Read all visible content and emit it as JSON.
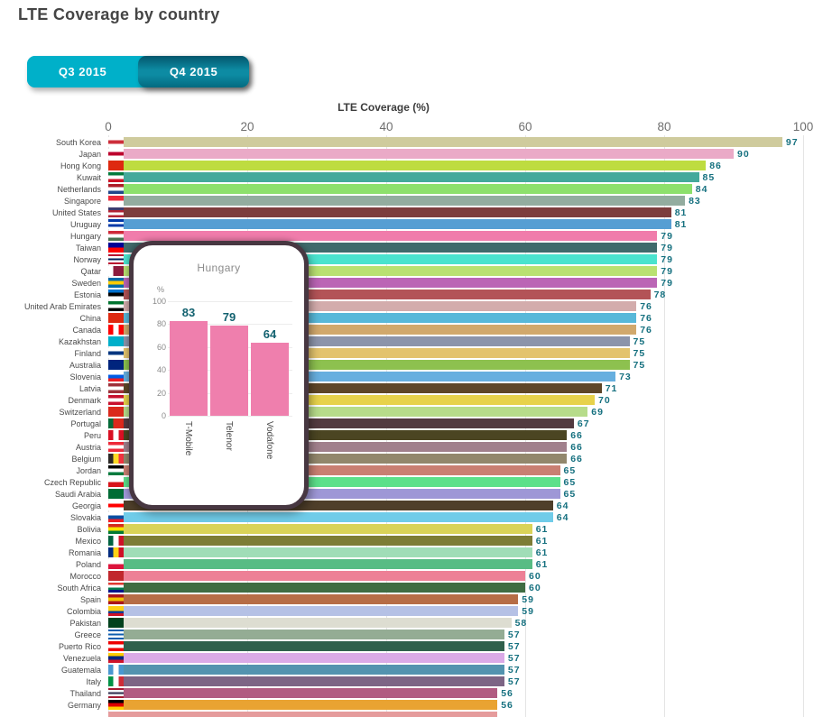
{
  "page_title": "LTE Coverage by country",
  "tabs": {
    "q3": {
      "label": "Q3 2015",
      "selected": false
    },
    "q4": {
      "label": "Q4 2015",
      "selected": true
    }
  },
  "colors": {
    "tab_inactive": "#00b0c9",
    "tab_active": "#0d8ba3",
    "value_label": "#15707f",
    "country_label": "#4a4a4a",
    "axis_tick": "#6f6f6f",
    "gridline": "#e4e4e4",
    "tooltip_border": "#473741",
    "tooltip_title_text": "#8b8b8b",
    "tooltip_bar": "#ef7fad",
    "partial_bottom_bar": "#e59b9c"
  },
  "chart_data": [
    {
      "type": "bar",
      "orientation": "horizontal",
      "title": "LTE Coverage by country",
      "xlabel": "LTE Coverage (%)",
      "xlim": [
        0,
        100
      ],
      "x_ticks": [
        0,
        20,
        40,
        60,
        80,
        100
      ],
      "grid": true,
      "categories": [
        "South Korea",
        "Japan",
        "Hong Kong",
        "Kuwait",
        "Netherlands",
        "Singapore",
        "United States",
        "Uruguay",
        "Hungary",
        "Taiwan",
        "Norway",
        "Qatar",
        "Sweden",
        "Estonia",
        "United Arab Emirates",
        "China",
        "Canada",
        "Kazakhstan",
        "Finland",
        "Australia",
        "Slovenia",
        "Latvia",
        "Denmark",
        "Switzerland",
        "Portugal",
        "Peru",
        "Austria",
        "Belgium",
        "Jordan",
        "Czech Republic",
        "Saudi Arabia",
        "Georgia",
        "Slovakia",
        "Bolivia",
        "Mexico",
        "Romania",
        "Poland",
        "Morocco",
        "South Africa",
        "Spain",
        "Colombia",
        "Pakistan",
        "Greece",
        "Puerto Rico",
        "Venezuela",
        "Guatemala",
        "Italy",
        "Thailand",
        "Germany"
      ],
      "values": [
        97,
        90,
        86,
        85,
        84,
        83,
        81,
        81,
        79,
        79,
        79,
        79,
        79,
        78,
        76,
        76,
        76,
        75,
        75,
        75,
        73,
        71,
        70,
        69,
        67,
        66,
        66,
        66,
        65,
        65,
        65,
        64,
        64,
        61,
        61,
        61,
        61,
        60,
        60,
        59,
        59,
        58,
        57,
        57,
        57,
        57,
        57,
        56,
        56
      ],
      "bar_colors": [
        "#cfcb9d",
        "#eaaac7",
        "#bedc40",
        "#43a99b",
        "#8de06c",
        "#93ac9f",
        "#7d3d3d",
        "#569ed3",
        "#f07cab",
        "#406a6b",
        "#4ae3ce",
        "#b9e171",
        "#bb65b5",
        "#b35357",
        "#d3acac",
        "#58b8d9",
        "#d1a86c",
        "#8c94aa",
        "#e3c36d",
        "#8dc14f",
        "#67afdf",
        "#5e4628",
        "#e7d24b",
        "#b7dc8a",
        "#533a40",
        "#4b4522",
        "#a1808c",
        "#92876c",
        "#c97f72",
        "#5ce08a",
        "#9e97d6",
        "#4f3f2a",
        "#70cce9",
        "#d9d358",
        "#7d7d36",
        "#a0ddb7",
        "#58bc84",
        "#ed8096",
        "#3f6c42",
        "#b66d46",
        "#b5c1e5",
        "#ddddd1",
        "#94ac94",
        "#2f604c",
        "#daaae7",
        "#5393af",
        "#7d6585",
        "#b15b81",
        "#e9a332"
      ],
      "flag_stripes": [
        [
          "#ffffff",
          "#cd2e3a",
          "#ffffff"
        ],
        [
          "#ffffff",
          "#bc002d",
          "#ffffff"
        ],
        [
          "#de2910"
        ],
        [
          "#007a3d",
          "#ffffff",
          "#ce1126"
        ],
        [
          "#ae1c28",
          "#ffffff",
          "#21468b"
        ],
        [
          "#ed2939",
          "#ffffff"
        ],
        [
          "#3c3b6e",
          "#b22234",
          "#ffffff",
          "#b22234"
        ],
        [
          "#0038a8",
          "#ffffff",
          "#0038a8",
          "#ffffff"
        ],
        [
          "#ce2939",
          "#ffffff",
          "#477050"
        ],
        [
          "#000095",
          "#fe0000"
        ],
        [
          "#ba0c2f",
          "#ffffff",
          "#00205b",
          "#ffffff",
          "#ba0c2f"
        ],
        [
          "v",
          "#ffffff",
          "#8d1b3d",
          "#8d1b3d"
        ],
        [
          "#006aa7",
          "#fecc02",
          "#006aa7"
        ],
        [
          "#0072ce",
          "#000000",
          "#ffffff"
        ],
        [
          "#00732f",
          "#ffffff",
          "#000000"
        ],
        [
          "#de2910"
        ],
        [
          "v",
          "#ff0000",
          "#ffffff",
          "#ff0000"
        ],
        [
          "#00afca"
        ],
        [
          "#ffffff",
          "#003580",
          "#ffffff"
        ],
        [
          "#00247d"
        ],
        [
          "#ffffff",
          "#005ce5",
          "#ed1c24"
        ],
        [
          "#9e3039",
          "#ffffff",
          "#9e3039"
        ],
        [
          "#c8102e",
          "#ffffff",
          "#c8102e"
        ],
        [
          "#da291c"
        ],
        [
          "v",
          "#046a38",
          "#da291c",
          "#da291c"
        ],
        [
          "v",
          "#d91023",
          "#ffffff",
          "#d91023"
        ],
        [
          "#ed2939",
          "#ffffff",
          "#ed2939"
        ],
        [
          "v",
          "#2d2926",
          "#fdda24",
          "#ef3340"
        ],
        [
          "#000000",
          "#ffffff",
          "#007a3d"
        ],
        [
          "#ffffff",
          "#d7141a"
        ],
        [
          "#006c35"
        ],
        [
          "#ffffff",
          "#ff0000",
          "#ffffff"
        ],
        [
          "#ffffff",
          "#0b4ea2",
          "#ee1c25"
        ],
        [
          "#d52b1e",
          "#f9e300",
          "#007934"
        ],
        [
          "v",
          "#006341",
          "#ffffff",
          "#ce1126"
        ],
        [
          "v",
          "#002b7f",
          "#fcd116",
          "#ce1126"
        ],
        [
          "#ffffff",
          "#dc143c"
        ],
        [
          "#c1272d"
        ],
        [
          "#de3831",
          "#ffffff",
          "#007a4d",
          "#001489"
        ],
        [
          "#aa151b",
          "#f1bf00",
          "#aa151b"
        ],
        [
          "#fcd116",
          "#fcd116",
          "#003893",
          "#ce1126"
        ],
        [
          "#01411c"
        ],
        [
          "#0d5eaf",
          "#ffffff",
          "#0d5eaf",
          "#ffffff",
          "#0d5eaf"
        ],
        [
          "#ed0000",
          "#ffffff",
          "#ed0000"
        ],
        [
          "#ffcc00",
          "#00247d",
          "#cf142b"
        ],
        [
          "v",
          "#4997d0",
          "#ffffff",
          "#4997d0"
        ],
        [
          "v",
          "#009246",
          "#ffffff",
          "#ce2b37"
        ],
        [
          "#a51931",
          "#f4f5f8",
          "#2d2a4a",
          "#f4f5f8",
          "#a51931"
        ],
        [
          "#000000",
          "#dd0000",
          "#ffce00"
        ]
      ]
    },
    {
      "type": "bar",
      "orientation": "vertical",
      "context": "hover-tooltip",
      "title": "Hungary",
      "ylabel": "%",
      "ylim": [
        0,
        100
      ],
      "y_ticks": [
        100,
        80,
        60,
        40,
        20,
        0
      ],
      "categories": [
        "T-Mobile",
        "Telenor",
        "Vodafone"
      ],
      "values": [
        83,
        79,
        64
      ]
    }
  ]
}
